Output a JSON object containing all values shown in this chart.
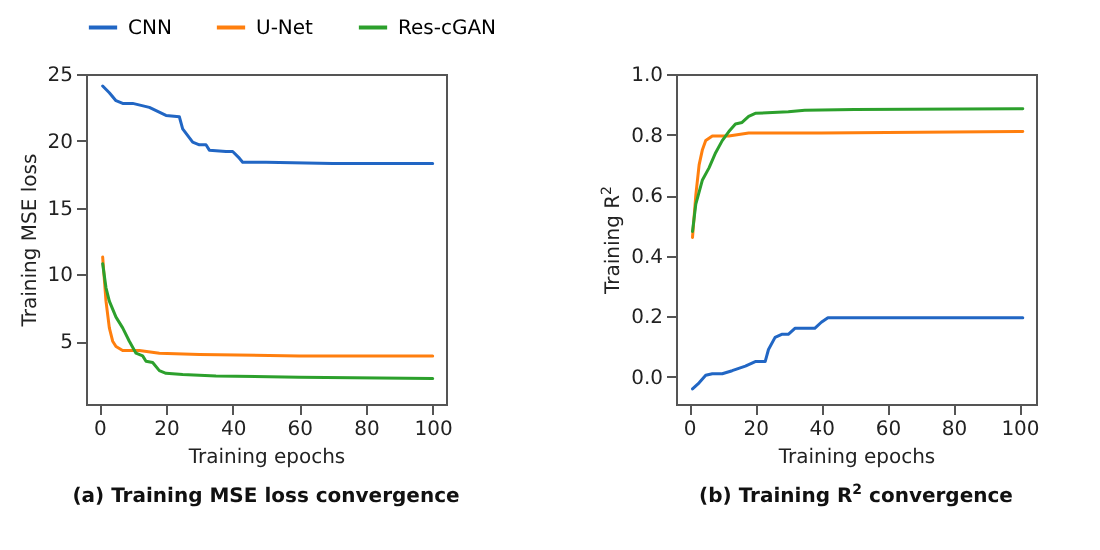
{
  "chart_data": [
    {
      "type": "line",
      "title": "(a) Training MSE loss convergence",
      "xlabel": "Training epochs",
      "ylabel": "Training MSE loss",
      "xlim": [
        -4,
        104
      ],
      "xticks": [
        0,
        20,
        40,
        60,
        80,
        100
      ],
      "ylim": [
        0.3,
        25
      ],
      "yticks": [
        5,
        10,
        15,
        20,
        25
      ],
      "legend": "top",
      "line_style": "solid",
      "series": [
        {
          "name": "CNN",
          "color": "#2166c4",
          "x": [
            1,
            3,
            5,
            7,
            10,
            15,
            20,
            24,
            25,
            28,
            30,
            32,
            33,
            38,
            40,
            42,
            43,
            50,
            70,
            100
          ],
          "values": [
            24.1,
            23.6,
            23,
            22.8,
            22.8,
            22.5,
            21.9,
            21.8,
            20.9,
            19.9,
            19.7,
            19.7,
            19.3,
            19.2,
            19.2,
            18.7,
            18.4,
            18.4,
            18.3,
            18.3
          ]
        },
        {
          "name": "U-Net",
          "color": "#ff7f0e",
          "x": [
            1,
            2,
            3,
            4,
            5,
            7,
            12,
            18,
            30,
            60,
            100
          ],
          "values": [
            11.3,
            8,
            6,
            5,
            4.6,
            4.3,
            4.3,
            4.1,
            4.0,
            3.9,
            3.9
          ]
        },
        {
          "name": "Res-cGAN",
          "color": "#2ca02c",
          "x": [
            1,
            2,
            3,
            5,
            7,
            9,
            11,
            13,
            14,
            16,
            18,
            20,
            25,
            35,
            60,
            100
          ],
          "values": [
            10.8,
            9,
            8,
            6.8,
            6,
            5,
            4.1,
            3.9,
            3.5,
            3.4,
            2.8,
            2.6,
            2.5,
            2.4,
            2.3,
            2.2
          ]
        }
      ]
    },
    {
      "type": "line",
      "title": "(b) Training R$^{2}$ convergence",
      "xlabel": "Training epochs",
      "ylabel": "Training R$^{2}$",
      "xlim": [
        -4,
        105
      ],
      "xticks": [
        0,
        20,
        40,
        60,
        80,
        100
      ],
      "ylim": [
        -0.09,
        1.0
      ],
      "yticks": [
        {
          "value": 0,
          "label": "0.0"
        },
        0.2,
        0.4,
        0.6,
        0.8,
        {
          "value": 1,
          "label": "1.0"
        }
      ],
      "line_style": "solid",
      "series": [
        {
          "color": "#2166c4",
          "x": [
            1,
            3,
            5,
            7,
            10,
            13,
            17,
            20,
            23,
            24,
            26,
            28,
            30,
            32,
            38,
            40,
            42,
            60,
            101
          ],
          "values": [
            -0.04,
            -0.02,
            0.005,
            0.01,
            0.01,
            0.02,
            0.035,
            0.05,
            0.05,
            0.09,
            0.13,
            0.14,
            0.14,
            0.16,
            0.16,
            0.18,
            0.195,
            0.195,
            0.195
          ]
        },
        {
          "color": "#ff7f0e",
          "x": [
            1,
            2,
            3,
            4,
            5,
            7,
            12,
            18,
            40,
            101
          ],
          "values": [
            0.46,
            0.6,
            0.7,
            0.75,
            0.78,
            0.795,
            0.795,
            0.805,
            0.805,
            0.81
          ]
        },
        {
          "color": "#2ca02c",
          "x": [
            1,
            2,
            4,
            6,
            8,
            10,
            12,
            14,
            16,
            18,
            20,
            30,
            35,
            50,
            101
          ],
          "values": [
            0.48,
            0.57,
            0.65,
            0.69,
            0.74,
            0.78,
            0.81,
            0.835,
            0.84,
            0.86,
            0.87,
            0.875,
            0.88,
            0.883,
            0.885
          ]
        }
      ]
    }
  ]
}
